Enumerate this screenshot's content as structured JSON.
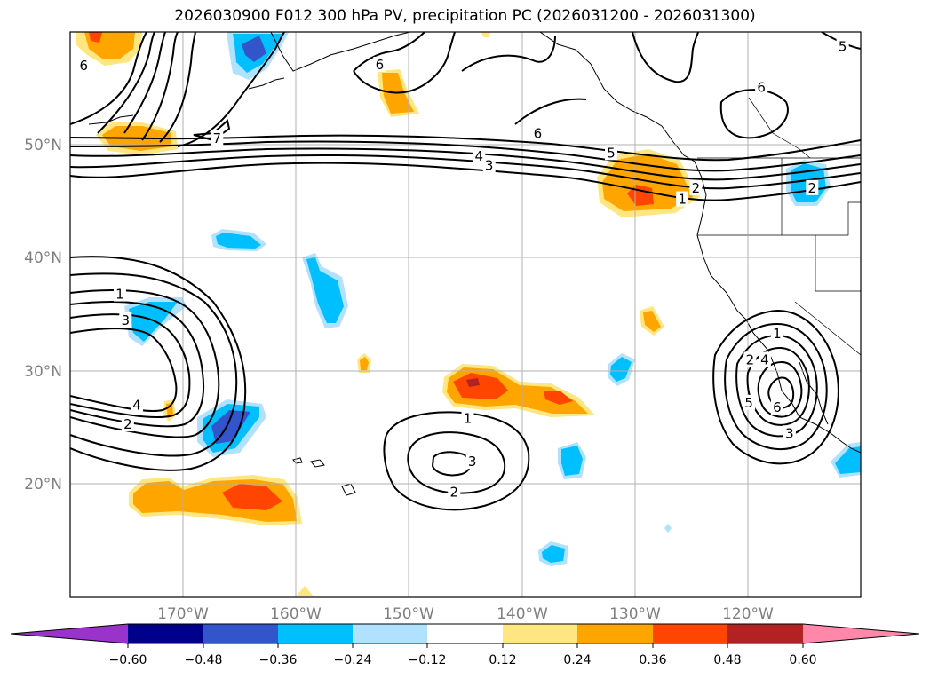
{
  "title": "2026030900 F012 300 hPa PV, precipitation PC (2026031200 - 2026031300)",
  "map": {
    "lon_range": [
      -180,
      -110
    ],
    "lat_range": [
      10,
      60
    ],
    "lon_ticks": [
      {
        "value": -170,
        "label": "170°W"
      },
      {
        "value": -160,
        "label": "160°W"
      },
      {
        "value": -150,
        "label": "150°W"
      },
      {
        "value": -140,
        "label": "140°W"
      },
      {
        "value": -130,
        "label": "130°W"
      },
      {
        "value": -120,
        "label": "120°W"
      }
    ],
    "lat_ticks": [
      {
        "value": 20,
        "label": "20°N"
      },
      {
        "value": 30,
        "label": "30°N"
      },
      {
        "value": 40,
        "label": "40°N"
      },
      {
        "value": 50,
        "label": "50°N"
      }
    ],
    "grid": true
  },
  "colorbar": {
    "levels": [
      -0.6,
      -0.48,
      -0.36,
      -0.24,
      -0.12,
      0.12,
      0.24,
      0.36,
      0.48,
      0.6
    ],
    "tick_labels": [
      "−0.60",
      "−0.48",
      "−0.36",
      "−0.24",
      "−0.12",
      "0.12",
      "0.24",
      "0.36",
      "0.48",
      "0.60"
    ],
    "colors": [
      "#9933cc",
      "#00008b",
      "#3355cc",
      "#00bfff",
      "#b0e2ff",
      "#ffffff",
      "#ffe680",
      "#ffa500",
      "#ff4500",
      "#b22222",
      "#ff88aa"
    ]
  },
  "pv_contour_labels": [
    {
      "text": "6",
      "lon": -178.8,
      "lat": 57.0
    },
    {
      "text": "7",
      "lon": -167.0,
      "lat": 50.6
    },
    {
      "text": "6",
      "lon": -138.6,
      "lat": 51.0
    },
    {
      "text": "5",
      "lon": -132.1,
      "lat": 49.3
    },
    {
      "text": "4",
      "lon": -143.8,
      "lat": 49.0
    },
    {
      "text": "3",
      "lon": -142.9,
      "lat": 48.2
    },
    {
      "text": "2",
      "lon": -124.6,
      "lat": 46.2
    },
    {
      "text": "1",
      "lon": -125.8,
      "lat": 45.2
    },
    {
      "text": "6",
      "lon": -152.6,
      "lat": 57.1
    },
    {
      "text": "6",
      "lon": -118.8,
      "lat": 55.1
    },
    {
      "text": "5",
      "lon": -111.6,
      "lat": 58.7
    },
    {
      "text": "2",
      "lon": -114.3,
      "lat": 46.2
    },
    {
      "text": "1",
      "lon": -175.6,
      "lat": 36.8
    },
    {
      "text": "3",
      "lon": -175.1,
      "lat": 34.5
    },
    {
      "text": "4",
      "lon": -174.1,
      "lat": 27.0
    },
    {
      "text": "2",
      "lon": -174.9,
      "lat": 25.3
    },
    {
      "text": "1",
      "lon": -144.8,
      "lat": 25.8
    },
    {
      "text": "3",
      "lon": -144.4,
      "lat": 22.0
    },
    {
      "text": "2",
      "lon": -146.0,
      "lat": 19.3
    },
    {
      "text": "1",
      "lon": -117.4,
      "lat": 33.3
    },
    {
      "text": "2",
      "lon": -119.8,
      "lat": 31.0
    },
    {
      "text": "4",
      "lon": -118.5,
      "lat": 31.0
    },
    {
      "text": "5",
      "lon": -119.9,
      "lat": 27.2
    },
    {
      "text": "6",
      "lon": -117.4,
      "lat": 26.8
    },
    {
      "text": "3",
      "lon": -116.3,
      "lat": 24.5
    }
  ]
}
